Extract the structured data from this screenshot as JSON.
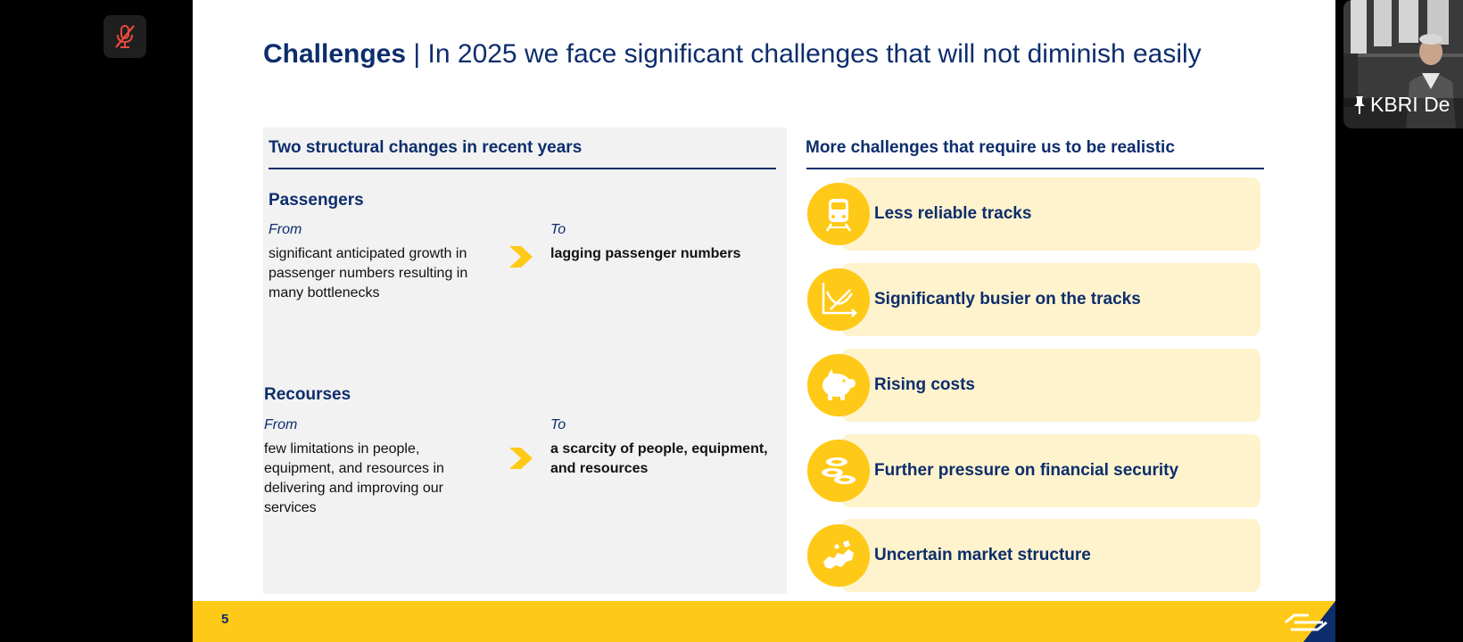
{
  "slide": {
    "title_bold": "Challenges",
    "title_rest": " | In 2025 we face significant challenges that will not diminish easily",
    "left": {
      "heading": "Two structural changes in recent years",
      "blocks": [
        {
          "title": "Passengers",
          "from_label": "From",
          "from_lines": [
            "significant anticipated growth in",
            "passenger numbers resulting in",
            "many bottlenecks"
          ],
          "to_label": "To",
          "to_lines": [
            "lagging passenger numbers"
          ]
        },
        {
          "title": "Recourses",
          "from_label": "From",
          "from_lines": [
            "few limitations in people,",
            "equipment, and resources in",
            "delivering and improving our",
            "services"
          ],
          "to_label": "To",
          "to_lines": [
            "a scarcity of people, equipment,",
            "and resources"
          ]
        }
      ]
    },
    "right": {
      "heading": "More challenges that require us to be realistic",
      "items": [
        {
          "label": "Less reliable tracks",
          "icon": "train-icon"
        },
        {
          "label": "Significantly busier on the tracks",
          "icon": "chart-icon"
        },
        {
          "label": "Rising costs",
          "icon": "piggy-bank-icon"
        },
        {
          "label": "Further pressure on financial security",
          "icon": "coins-icon"
        },
        {
          "label": "Uncertain market structure",
          "icon": "map-icon"
        }
      ]
    },
    "page_number": "5"
  },
  "meeting": {
    "participant_label": "KBRI De"
  },
  "colors": {
    "navy": "#0d2d6c",
    "yellow": "#ffc917",
    "light_yellow": "#fef3cd",
    "panel_gray": "#f2f2f2"
  }
}
